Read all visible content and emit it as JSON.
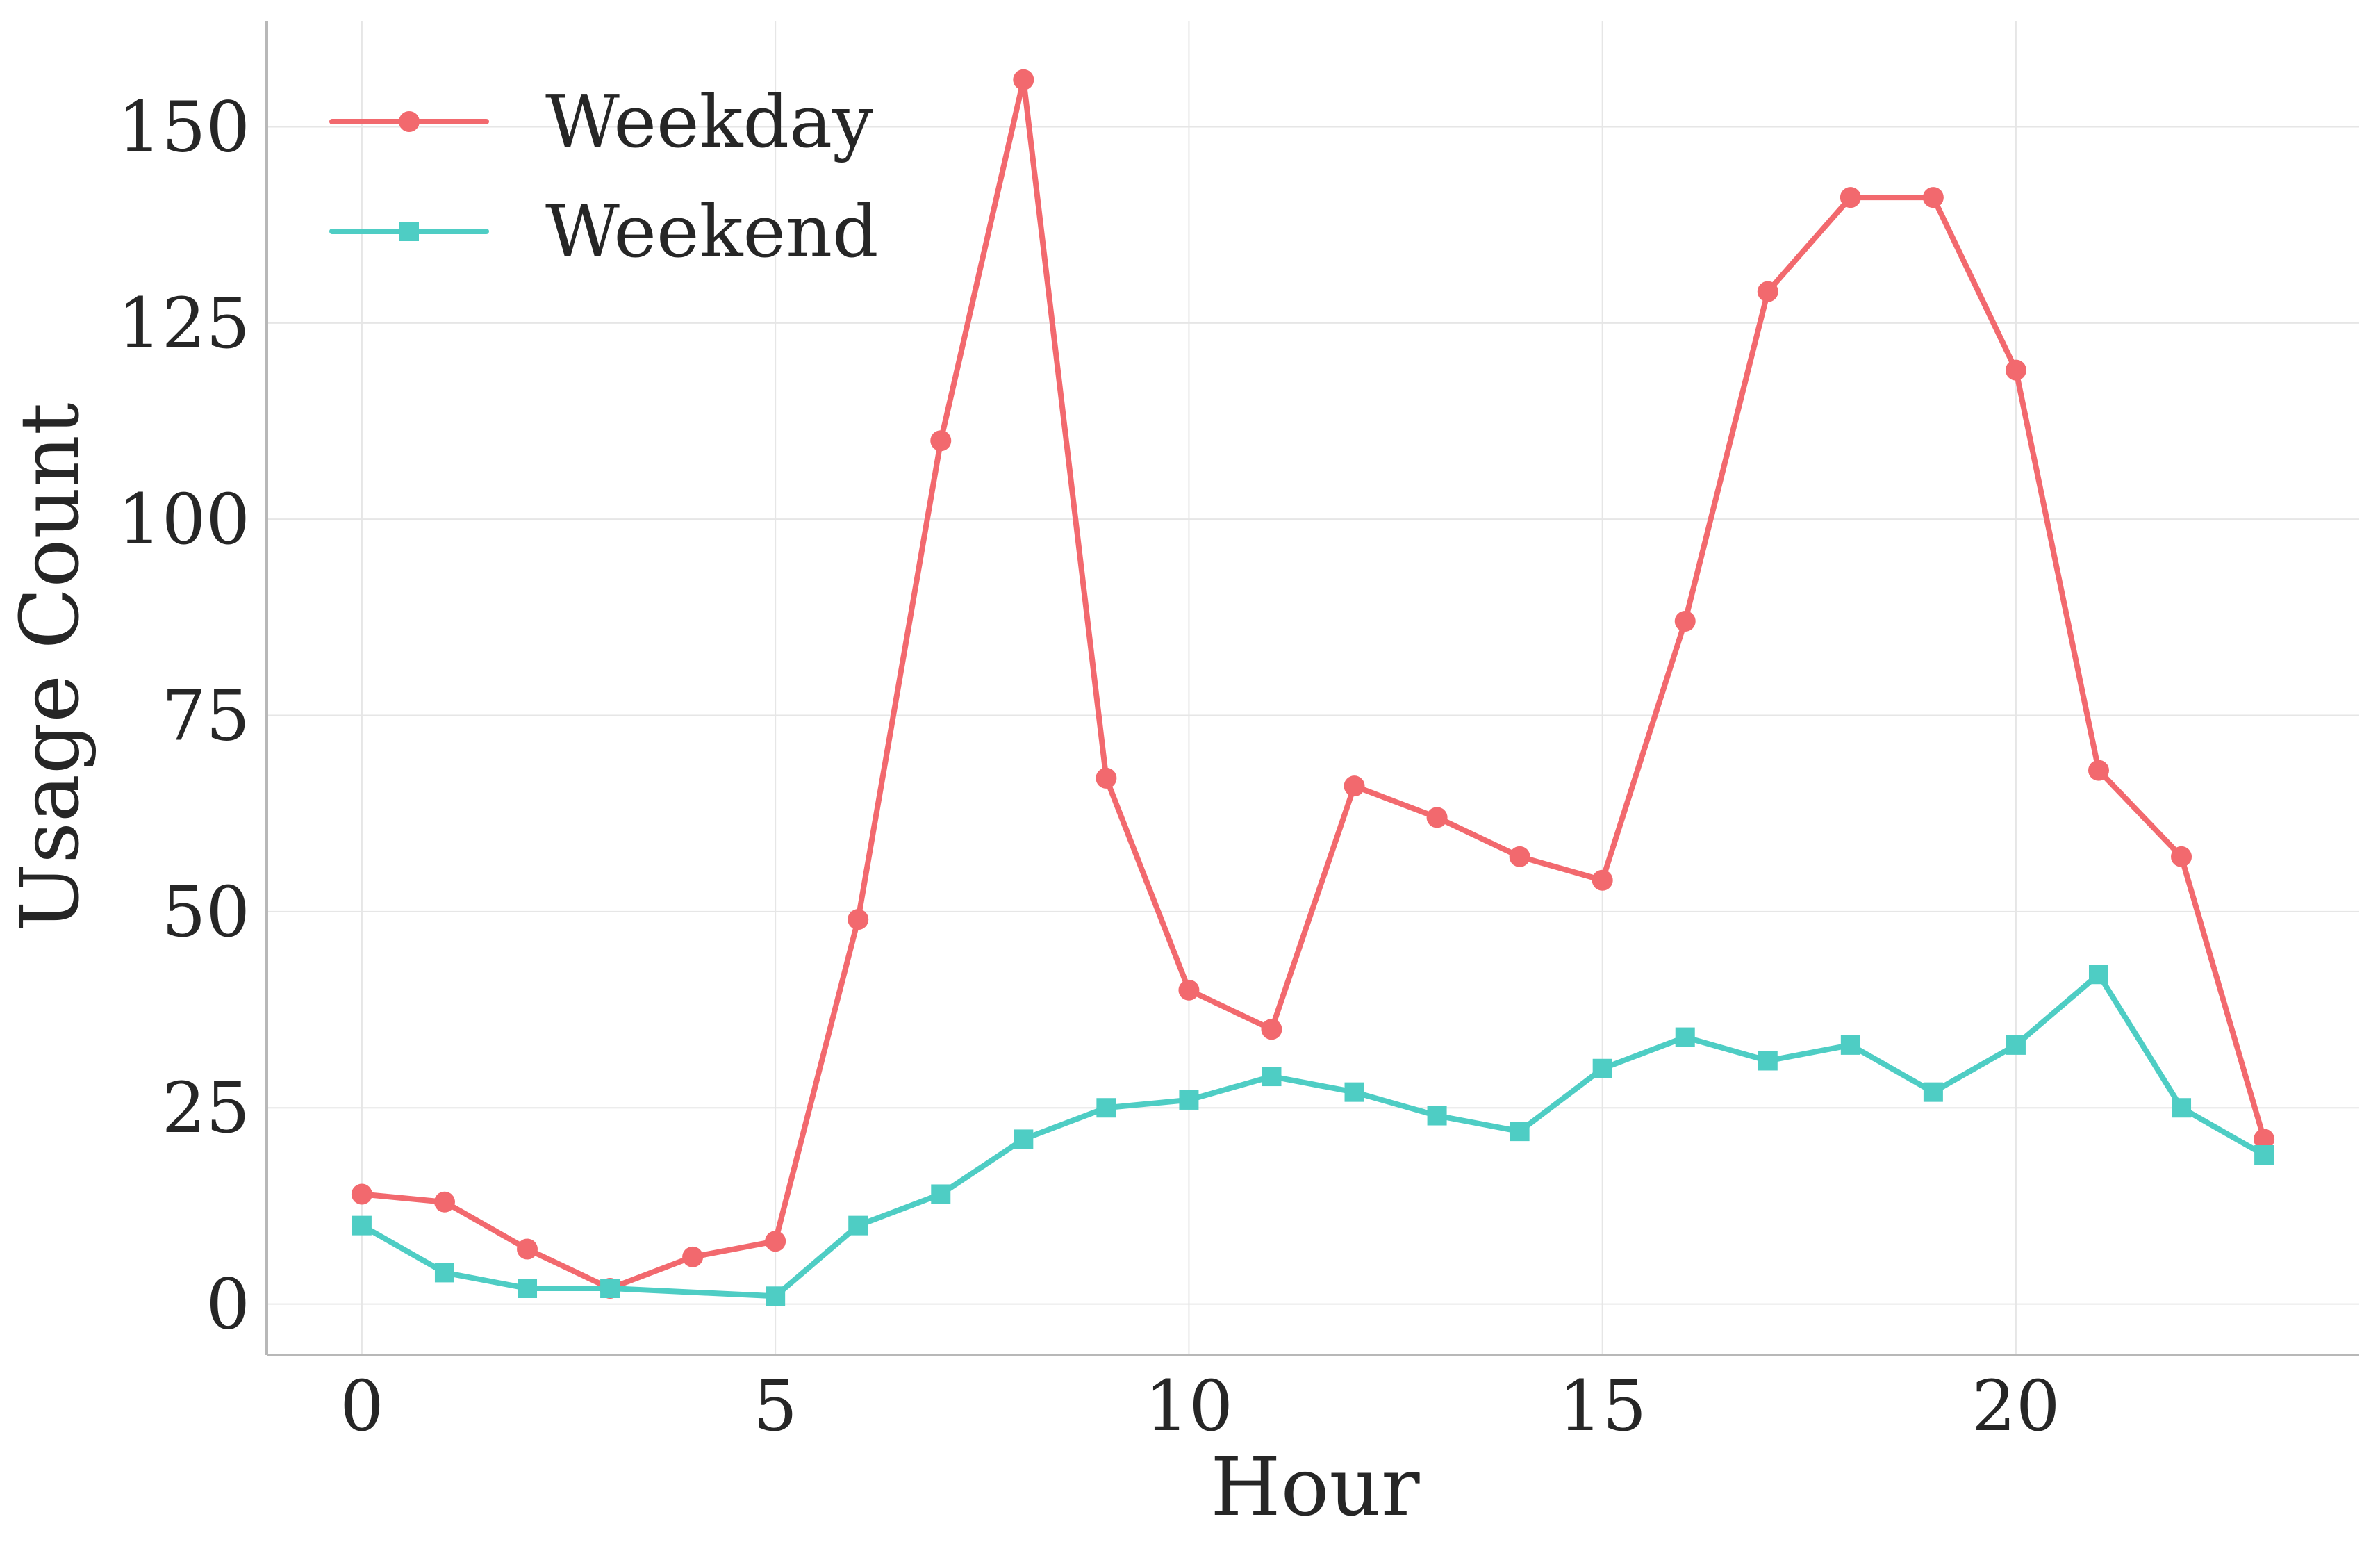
{
  "chart_data": {
    "type": "line",
    "x": [
      0,
      1,
      2,
      3,
      4,
      5,
      6,
      7,
      8,
      9,
      10,
      11,
      12,
      13,
      14,
      15,
      16,
      17,
      18,
      19,
      20,
      21,
      22,
      23
    ],
    "series": [
      {
        "name": "Weekday",
        "color": "#f2696e",
        "marker": "circle",
        "x": [
          0,
          1,
          2,
          3,
          4,
          5,
          6,
          7,
          8,
          9,
          10,
          11,
          12,
          13,
          14,
          15,
          16,
          17,
          18,
          19,
          20,
          21,
          22,
          23
        ],
        "values": [
          14,
          13,
          7,
          2,
          6,
          8,
          49,
          110,
          156,
          67,
          40,
          35,
          66,
          62,
          57,
          54,
          87,
          129,
          141,
          141,
          119,
          68,
          57,
          21
        ]
      },
      {
        "name": "Weekend",
        "color": "#4ecdc4",
        "marker": "square",
        "x": [
          0,
          1,
          2,
          3,
          5,
          6,
          7,
          8,
          9,
          10,
          11,
          12,
          13,
          14,
          15,
          16,
          17,
          18,
          19,
          20,
          21,
          22,
          23
        ],
        "values": [
          10,
          4,
          2,
          2,
          1,
          10,
          14,
          21,
          25,
          26,
          29,
          27,
          24,
          22,
          30,
          34,
          31,
          33,
          27,
          33,
          42,
          25,
          19
        ]
      }
    ],
    "xlabel": "Hour",
    "ylabel": "Usage Count",
    "xlim": [
      -1.15,
      24.15
    ],
    "ylim": [
      -6.5,
      163.5
    ],
    "xticks": [
      0,
      5,
      10,
      15,
      20
    ],
    "yticks": [
      0,
      25,
      50,
      75,
      100,
      125,
      150
    ],
    "grid": true,
    "legend_position": "top-left"
  }
}
